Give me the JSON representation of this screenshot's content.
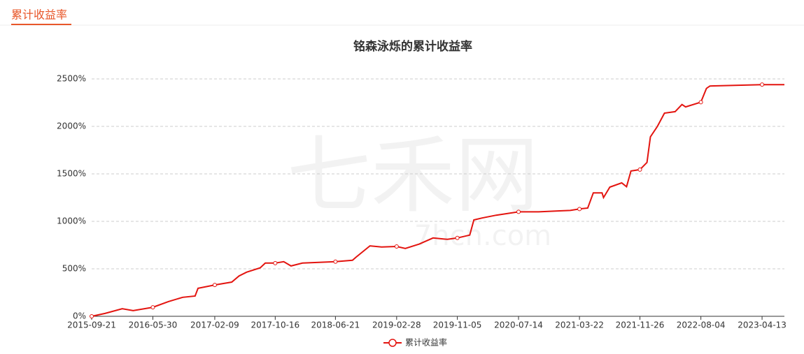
{
  "header": {
    "tab": "累计收益率"
  },
  "chart_data": {
    "type": "line",
    "title": "铭森泳烁的累计收益率",
    "watermark": [
      "七禾网",
      "7hcn.com"
    ],
    "x": [
      "2015-09-21",
      "2015-11-15",
      "2016-01-25",
      "2016-03-10",
      "2016-05-30",
      "2016-08-02",
      "2016-09-30",
      "2016-11-20",
      "2016-12-02",
      "2017-02-09",
      "2017-04-20",
      "2017-05-20",
      "2017-06-20",
      "2017-08-15",
      "2017-09-05",
      "2017-10-16",
      "2017-11-20",
      "2017-12-20",
      "2018-02-05",
      "2018-06-21",
      "2018-08-30",
      "2018-09-15",
      "2018-11-10",
      "2018-12-28",
      "2019-02-28",
      "2019-04-05",
      "2019-06-01",
      "2019-07-28",
      "2019-09-25",
      "2019-11-05",
      "2019-12-26",
      "2020-01-12",
      "2020-02-15",
      "2020-04-13",
      "2020-07-14",
      "2020-10-05",
      "2020-12-30",
      "2021-02-12",
      "2021-03-22",
      "2021-04-25",
      "2021-05-18",
      "2021-06-23",
      "2021-06-29",
      "2021-07-25",
      "2021-09-12",
      "2021-10-02",
      "2021-10-20",
      "2021-11-26",
      "2021-12-25",
      "2022-01-08",
      "2022-02-06",
      "2022-03-07",
      "2022-04-20",
      "2022-05-18",
      "2022-06-02",
      "2022-08-04",
      "2022-08-27",
      "2022-09-10",
      "2023-04-13",
      "2023-07-14"
    ],
    "series": [
      {
        "name": "累计收益率",
        "color": "#e3140f",
        "values": [
          0,
          30,
          80,
          60,
          95,
          155,
          200,
          213,
          295,
          330,
          360,
          425,
          465,
          510,
          560,
          560,
          575,
          530,
          560,
          575,
          590,
          625,
          742,
          730,
          735,
          715,
          760,
          825,
          810,
          825,
          855,
          1015,
          1035,
          1065,
          1100,
          1100,
          1110,
          1115,
          1130,
          1140,
          1300,
          1300,
          1250,
          1360,
          1405,
          1365,
          1530,
          1545,
          1620,
          1890,
          2000,
          2140,
          2155,
          2230,
          2205,
          2255,
          2400,
          2425,
          2440,
          2440
        ]
      }
    ],
    "xlim": [
      "2015-09-21",
      "2023-07-14"
    ],
    "xticks": [
      "2015-09-21",
      "2016-05-30",
      "2017-02-09",
      "2017-10-16",
      "2018-06-21",
      "2019-02-28",
      "2019-11-05",
      "2020-07-14",
      "2021-03-22",
      "2021-11-26",
      "2022-08-04",
      "2023-04-13"
    ],
    "ylim": [
      0,
      2500
    ],
    "yticks": [
      {
        "value": 0,
        "label": "0%"
      },
      {
        "value": 500,
        "label": "500%"
      },
      {
        "value": 1000,
        "label": "1000%"
      },
      {
        "value": 1500,
        "label": "1500%"
      },
      {
        "value": 2000,
        "label": "2000%"
      },
      {
        "value": 2500,
        "label": "2500%"
      }
    ],
    "grid": true
  }
}
